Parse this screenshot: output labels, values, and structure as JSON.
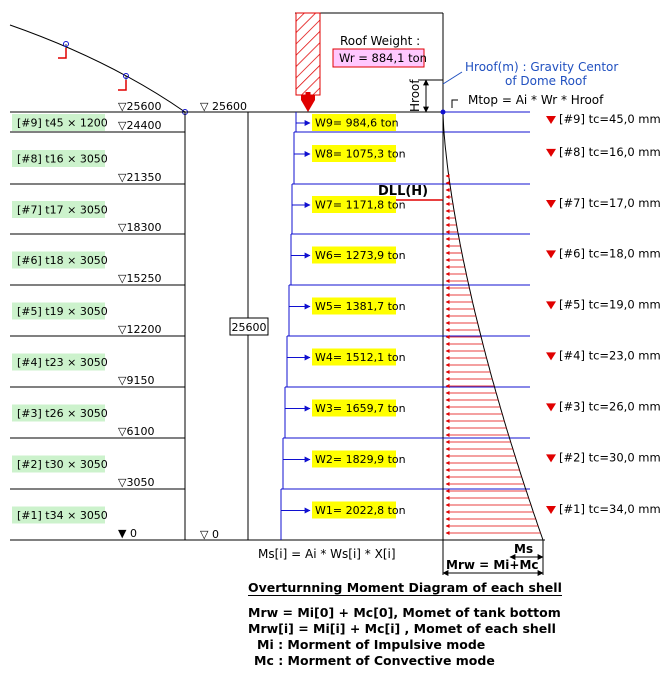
{
  "shells": [
    {
      "id": "[#9]",
      "spec": "t45 × 1200",
      "elev": "24400",
      "weight": "W9= 984,6 ton",
      "tc": "[#9]  tc=45,0 mm"
    },
    {
      "id": "[#8]",
      "spec": "t16 × 3050",
      "elev": "21350",
      "weight": "W8= 1075,3 ton",
      "tc": "[#8]  tc=16,0 mm"
    },
    {
      "id": "[#7]",
      "spec": "t17 × 3050",
      "elev": "18300",
      "weight": "W7= 1171,8 ton",
      "tc": "[#7]  tc=17,0 mm"
    },
    {
      "id": "[#6]",
      "spec": "t18 × 3050",
      "elev": "15250",
      "weight": "W6= 1273,9 ton",
      "tc": "[#6]  tc=18,0 mm"
    },
    {
      "id": "[#5]",
      "spec": "t19 × 3050",
      "elev": "12200",
      "weight": "W5= 1381,7 ton",
      "tc": "[#5]  tc=19,0 mm"
    },
    {
      "id": "[#4]",
      "spec": "t23 × 3050",
      "elev": "9150",
      "weight": "W4= 1512,1 ton",
      "tc": "[#4]  tc=23,0 mm"
    },
    {
      "id": "[#3]",
      "spec": "t26 × 3050",
      "elev": "6100",
      "weight": "W3= 1659,7 ton",
      "tc": "[#3]  tc=26,0 mm"
    },
    {
      "id": "[#2]",
      "spec": "t30 × 3050",
      "elev": "3050",
      "weight": "W2= 1829,9 ton",
      "tc": "[#2]  tc=30,0 mm"
    },
    {
      "id": "[#1]",
      "spec": "t34 × 3050",
      "elev": "0",
      "weight": "W1= 2022,8 ton",
      "tc": "[#1]  tc=34,0 mm"
    }
  ],
  "top_elev_left": "25600",
  "top_elev_mid": "25600",
  "bottom_elev_mid": "0",
  "height_dim": "25600",
  "roof_weight_label": "Roof Weight :",
  "roof_weight_value": "Wr = 884,1 ton",
  "hroof_label_line1": "Hroof(m) : Gravity Centor",
  "hroof_label_line2": "of Dome Roof",
  "hroof_vertical": "Hroof",
  "mtop_formula": "Mtop = Ai * Wr * Hroof",
  "dll_label": "DLL(H)",
  "ms_formula": "Ms[i] = Ai * Ws[i] * X[i]",
  "ms_label": "Ms",
  "mrw_label": "Mrw = Mi+Mc",
  "caption": {
    "title": "Overturnning Moment Diagram of each shell",
    "line1": "Mrw = Mi[0] + Mc[0],  Momet of tank bottom",
    "line2": "Mrw[i] = Mi[i] + Mc[i] , Momet of each shell",
    "line3": "Mi  : Morment of Impulsive mode",
    "line4": "Mc : Morment of Convective mode"
  },
  "colors": {
    "blue": "#1010d0",
    "red": "#e00000",
    "yellow_box": "#ffff00",
    "green_box": "#ccf2cc",
    "pink_box": "#ffc8ff",
    "label_blue": "#2050c0"
  }
}
